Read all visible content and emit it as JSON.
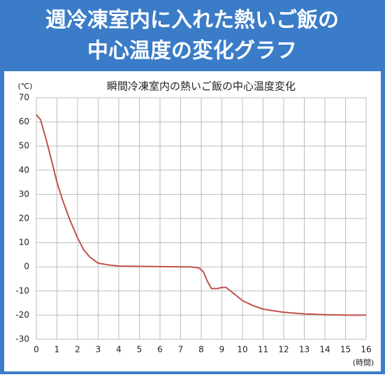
{
  "header": {
    "lines": [
      "週冷凍室内に入れた熱いご飯の",
      "中心温度の変化グラフ"
    ]
  },
  "chart_data": {
    "type": "line",
    "title": "瞬間冷凍室内の熱いご飯の中心温度変化",
    "y_label": "(℃)",
    "x_label": "(時間)",
    "series": [
      {
        "name": "中心温度",
        "color": "#c0504d",
        "x": [
          0,
          0.2,
          0.5,
          0.8,
          1,
          1.3,
          1.6,
          2,
          2.3,
          2.6,
          3,
          3.5,
          4,
          5,
          6,
          7,
          7.5,
          7.9,
          8.1,
          8.3,
          8.5,
          8.8,
          9,
          9.2,
          9.5,
          10,
          10.5,
          11,
          11.5,
          12,
          13,
          14,
          15,
          16
        ],
        "values": [
          63,
          61,
          52,
          42,
          35,
          27,
          20,
          12,
          7,
          4,
          1.5,
          0.8,
          0.3,
          0.2,
          0.1,
          0,
          0,
          -0.5,
          -2,
          -6,
          -9,
          -9,
          -8.5,
          -8.5,
          -10.5,
          -14,
          -16,
          -17.5,
          -18.2,
          -18.8,
          -19.5,
          -19.8,
          -20,
          -20
        ]
      }
    ],
    "xlim": [
      0,
      16
    ],
    "xticks": [
      0,
      1,
      2,
      3,
      4,
      5,
      6,
      7,
      8,
      9,
      10,
      11,
      12,
      13,
      14,
      15,
      16
    ],
    "ylim": [
      -30,
      70
    ],
    "yticks": [
      -30,
      -20,
      -10,
      0,
      10,
      20,
      30,
      40,
      50,
      60,
      70
    ],
    "grid": true
  }
}
